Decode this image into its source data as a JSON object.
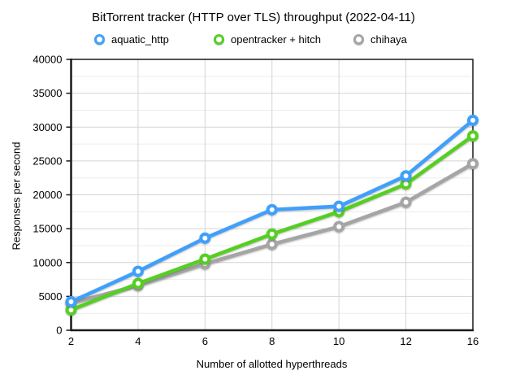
{
  "title": "BitTorrent tracker (HTTP over TLS) throughput (2022-04-11)",
  "legend": [
    {
      "label": "aquatic_http",
      "color": "#3FA0FC"
    },
    {
      "label": "opentracker + hitch",
      "color": "#55CF22"
    },
    {
      "label": "chihaya",
      "color": "#A5A5A5"
    }
  ],
  "colors": {
    "aquatic_http": "#3FA0FC",
    "opentracker_hitch": "#55CF22",
    "chihaya": "#A5A5A5",
    "major_grid": "#d4d4d4",
    "minor_grid": "#ececec",
    "frame": "#1a1a1a"
  },
  "chart_data": {
    "type": "line",
    "title": "BitTorrent tracker (HTTP over TLS) throughput (2022-04-11)",
    "xlabel": "Number of allotted hyperthreads",
    "ylabel": "Responses per second",
    "categories": [
      2,
      4,
      6,
      8,
      10,
      12,
      16
    ],
    "x_tick_labels": [
      "2",
      "4",
      "6",
      "8",
      "10",
      "12",
      "16"
    ],
    "series": [
      {
        "name": "aquatic_http",
        "color": "#3FA0FC",
        "values": [
          4200,
          8700,
          13600,
          17800,
          18300,
          22800,
          31000
        ]
      },
      {
        "name": "opentracker + hitch",
        "color": "#55CF22",
        "values": [
          3000,
          6900,
          10500,
          14200,
          17500,
          21600,
          28700
        ]
      },
      {
        "name": "chihaya",
        "color": "#A5A5A5",
        "values": [
          4000,
          6600,
          9800,
          12700,
          15300,
          18900,
          24600
        ]
      }
    ],
    "ylim": [
      0,
      40000
    ],
    "y_major_step": 5000,
    "y_minor_step": 2500,
    "y_tick_labels": [
      "0",
      "5000",
      "10000",
      "15000",
      "20000",
      "25000",
      "30000",
      "35000",
      "40000"
    ],
    "grid": true,
    "legend_position": "top"
  }
}
